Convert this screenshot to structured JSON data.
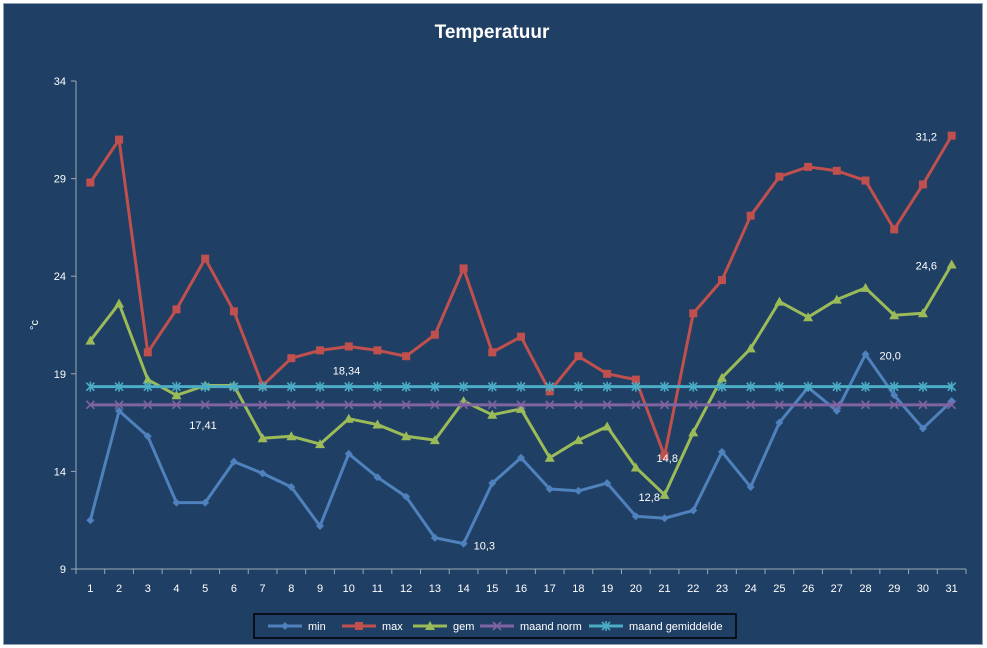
{
  "chart_data": {
    "type": "line",
    "title": "Temperatuur",
    "ylabel": "°c",
    "xlabel": "",
    "ylim": [
      9,
      34
    ],
    "yticks": [
      9,
      14,
      19,
      24,
      29,
      34
    ],
    "categories": [
      "1",
      "2",
      "3",
      "4",
      "5",
      "6",
      "7",
      "8",
      "9",
      "10",
      "11",
      "12",
      "13",
      "14",
      "15",
      "16",
      "17",
      "18",
      "19",
      "20",
      "21",
      "22",
      "23",
      "24",
      "25",
      "26",
      "27",
      "28",
      "29",
      "30",
      "31"
    ],
    "grid": false,
    "legend_position": "bottom",
    "series": [
      {
        "name": "min",
        "color": "#4f81bd",
        "marker": "diamond",
        "values": [
          11.5,
          17.1,
          15.8,
          12.4,
          12.4,
          14.5,
          13.9,
          13.2,
          11.2,
          14.9,
          13.7,
          12.7,
          10.6,
          10.3,
          13.4,
          14.7,
          13.1,
          13.0,
          13.4,
          11.7,
          11.6,
          12.0,
          15.0,
          13.2,
          16.5,
          18.3,
          17.1,
          20.0,
          17.9,
          16.2,
          17.6
        ]
      },
      {
        "name": "max",
        "color": "#c0504d",
        "marker": "square",
        "values": [
          28.8,
          31.0,
          20.1,
          22.3,
          24.9,
          22.2,
          18.4,
          19.8,
          20.2,
          20.4,
          20.2,
          19.9,
          21.0,
          24.4,
          20.1,
          20.9,
          18.1,
          19.9,
          19.0,
          18.7,
          14.8,
          22.1,
          23.8,
          27.1,
          29.1,
          29.6,
          29.4,
          28.9,
          26.4,
          28.7,
          31.2
        ]
      },
      {
        "name": "gem",
        "color": "#9bbb59",
        "marker": "triangle",
        "values": [
          20.7,
          22.6,
          18.7,
          17.9,
          18.4,
          18.4,
          15.7,
          15.8,
          15.4,
          16.7,
          16.4,
          15.8,
          15.6,
          17.6,
          16.9,
          17.2,
          14.7,
          15.6,
          16.3,
          14.2,
          12.8,
          16.0,
          18.8,
          20.3,
          22.7,
          21.9,
          22.8,
          23.4,
          22.0,
          22.1,
          24.6
        ]
      },
      {
        "name": "maand norm",
        "color": "#8064a2",
        "marker": "x",
        "values": [
          17.41,
          17.41,
          17.41,
          17.41,
          17.41,
          17.41,
          17.41,
          17.41,
          17.41,
          17.41,
          17.41,
          17.41,
          17.41,
          17.41,
          17.41,
          17.41,
          17.41,
          17.41,
          17.41,
          17.41,
          17.41,
          17.41,
          17.41,
          17.41,
          17.41,
          17.41,
          17.41,
          17.41,
          17.41,
          17.41,
          17.41
        ]
      },
      {
        "name": "maand gemiddelde",
        "color": "#4bacc6",
        "marker": "star",
        "values": [
          18.34,
          18.34,
          18.34,
          18.34,
          18.34,
          18.34,
          18.34,
          18.34,
          18.34,
          18.34,
          18.34,
          18.34,
          18.34,
          18.34,
          18.34,
          18.34,
          18.34,
          18.34,
          18.34,
          18.34,
          18.34,
          18.34,
          18.34,
          18.34,
          18.34,
          18.34,
          18.34,
          18.34,
          18.34,
          18.34,
          18.34
        ]
      }
    ],
    "annotations": [
      {
        "series": "max",
        "index": 30,
        "text": "31,2"
      },
      {
        "series": "gem",
        "index": 30,
        "text": "24,6"
      },
      {
        "series": "min",
        "index": 27,
        "text": "20,0"
      },
      {
        "series": "maand gemiddelde",
        "index": 9,
        "text": "18,34"
      },
      {
        "series": "maand norm",
        "index": 4,
        "text": "17,41"
      },
      {
        "series": "max",
        "index": 20,
        "text": "14,8"
      },
      {
        "series": "gem",
        "index": 20,
        "text": "12,8"
      },
      {
        "series": "min",
        "index": 13,
        "text": "10,3"
      }
    ]
  }
}
